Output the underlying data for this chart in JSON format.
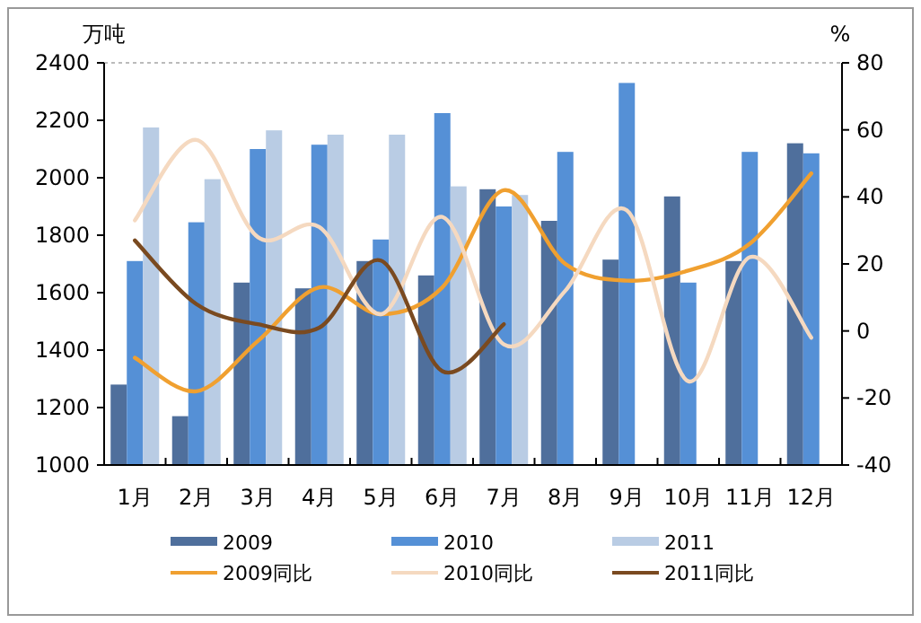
{
  "chart_data": {
    "type": "bar",
    "ylabel": "万吨",
    "y2label": "%",
    "categories": [
      "1月",
      "2月",
      "3月",
      "4月",
      "5月",
      "6月",
      "7月",
      "8月",
      "9月",
      "10月",
      "11月",
      "12月"
    ],
    "series": [
      {
        "name": "2009",
        "color": "#4f6f9c",
        "values": [
          1280,
          1170,
          1635,
          1615,
          1710,
          1660,
          1960,
          1850,
          1715,
          1935,
          1710,
          2120
        ]
      },
      {
        "name": "2010",
        "color": "#5590d6",
        "values": [
          1710,
          1845,
          2100,
          2115,
          1785,
          2225,
          1900,
          2090,
          2330,
          1635,
          2090,
          2085
        ]
      },
      {
        "name": "2011",
        "color": "#b9cce4",
        "values": [
          2175,
          1995,
          2165,
          2150,
          2150,
          1970,
          1940,
          null,
          null,
          null,
          null,
          null
        ]
      },
      {
        "name": "2009同比",
        "type": "line",
        "axis": "y2",
        "color": "#f0a030",
        "values": [
          -8,
          -18,
          -3,
          13,
          5,
          13,
          42,
          20,
          15,
          18,
          26,
          47
        ]
      },
      {
        "name": "2010同比",
        "type": "line",
        "axis": "y2",
        "color": "#f5d9c0",
        "values": [
          33,
          57,
          28,
          31,
          5,
          34,
          -4,
          12,
          36,
          -15,
          22,
          -2
        ]
      },
      {
        "name": "2011同比",
        "type": "line",
        "axis": "y2",
        "color": "#7a4a20",
        "values": [
          27,
          8,
          2,
          1,
          21,
          -12,
          2,
          null,
          null,
          null,
          null,
          null
        ]
      }
    ],
    "ylim": [
      1000,
      2400
    ],
    "yticks": [
      1000,
      1200,
      1400,
      1600,
      1800,
      2000,
      2200,
      2400
    ],
    "y2lim": [
      -40,
      80
    ],
    "y2ticks": [
      -40,
      -20,
      0,
      20,
      40,
      60,
      80
    ],
    "legend": "bottom"
  }
}
